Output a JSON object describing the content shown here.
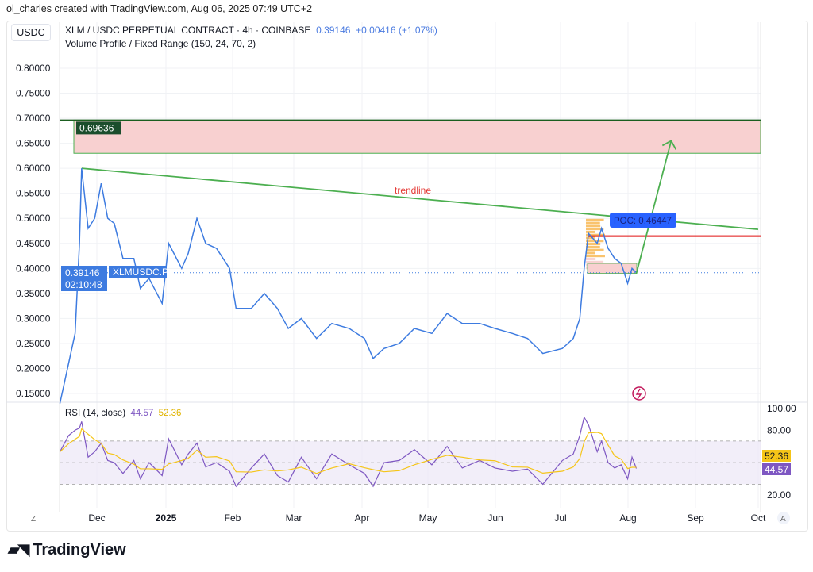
{
  "header": {
    "credit": "ol_charles created with TradingView.com, Aug 06, 2025 07:49 UTC+2",
    "currency": "USDC",
    "symbol": "XLM / USDC PERPETUAL CONTRACT · 4h · COINBASE",
    "price": "0.39146",
    "change": "+0.00416 (+1.07%)",
    "indicator": "Volume Profile / Fixed Range (150, 24, 70, 2)"
  },
  "labels": {
    "trendline": "trendline",
    "poc": "POC: 0.46447",
    "zone_top": "0.69636",
    "last_price": "0.39146",
    "countdown": "02:10:48",
    "ticker_tag": "XLMUSDC.P",
    "rsi_title": "RSI (14, close)",
    "rsi_value": "44.57",
    "rsi_ma": "52.36",
    "z": "Z",
    "a": "A",
    "brand": "TradingView"
  },
  "colors": {
    "price_line": "#3d7be0",
    "trendline": "#4caf50",
    "zone": "#f8d0d0",
    "poc": "#e01010",
    "rsi": "#7e57c2",
    "rsi_ma": "#f5c518"
  },
  "chart_data": {
    "type": "line",
    "price_axis": {
      "ticks": [
        "0.80000",
        "0.75000",
        "0.70000",
        "0.65000",
        "0.60000",
        "0.55000",
        "0.50000",
        "0.45000",
        "0.40000",
        "0.35000",
        "0.30000",
        "0.25000",
        "0.20000",
        "0.15000"
      ],
      "ylim": [
        0.13,
        0.85
      ]
    },
    "time_axis": {
      "ticks": [
        "Dec",
        "2025",
        "Feb",
        "Mar",
        "Apr",
        "May",
        "Jun",
        "Jul",
        "Aug",
        "Sep",
        "Oct"
      ]
    },
    "series": [
      {
        "x": [
          "2024-11-14",
          "2024-11-18",
          "2024-11-21",
          "2024-11-23",
          "2024-11-24",
          "2024-11-27",
          "2024-11-30",
          "2024-12-03",
          "2024-12-06",
          "2024-12-09",
          "2024-12-13",
          "2024-12-18",
          "2024-12-21",
          "2024-12-25",
          "2024-12-31",
          "2025-01-03",
          "2025-01-09",
          "2025-01-12",
          "2025-01-16",
          "2025-01-20",
          "2025-01-25",
          "2025-01-31",
          "2025-02-03",
          "2025-02-10",
          "2025-02-16",
          "2025-02-22",
          "2025-02-27",
          "2025-03-05",
          "2025-03-12",
          "2025-03-19",
          "2025-03-27",
          "2025-04-03",
          "2025-04-07",
          "2025-04-12",
          "2025-04-19",
          "2025-04-26",
          "2025-05-04",
          "2025-05-11",
          "2025-05-18",
          "2025-05-26",
          "2025-06-02",
          "2025-06-10",
          "2025-06-17",
          "2025-06-24",
          "2025-07-03",
          "2025-07-08",
          "2025-07-11",
          "2025-07-13",
          "2025-07-15",
          "2025-07-19",
          "2025-07-21",
          "2025-07-24",
          "2025-07-27",
          "2025-07-30",
          "2025-08-02",
          "2025-08-04",
          "2025-08-06"
        ],
        "y": [
          0.13,
          0.21,
          0.27,
          0.45,
          0.6,
          0.48,
          0.5,
          0.57,
          0.5,
          0.49,
          0.42,
          0.42,
          0.36,
          0.38,
          0.33,
          0.45,
          0.4,
          0.43,
          0.5,
          0.45,
          0.44,
          0.4,
          0.32,
          0.32,
          0.35,
          0.32,
          0.28,
          0.3,
          0.26,
          0.29,
          0.28,
          0.26,
          0.22,
          0.24,
          0.25,
          0.28,
          0.27,
          0.31,
          0.29,
          0.29,
          0.28,
          0.27,
          0.26,
          0.23,
          0.24,
          0.26,
          0.3,
          0.4,
          0.47,
          0.45,
          0.48,
          0.44,
          0.42,
          0.41,
          0.37,
          0.4,
          0.39146
        ]
      }
    ],
    "rsi": {
      "ticks": [
        "100.00",
        "80.00",
        "20.00"
      ],
      "bands": [
        30,
        70
      ],
      "values": [
        60,
        75,
        80,
        82,
        88,
        55,
        60,
        68,
        52,
        50,
        40,
        52,
        35,
        50,
        38,
        72,
        48,
        58,
        68,
        46,
        50,
        42,
        28,
        45,
        58,
        38,
        32,
        55,
        35,
        58,
        48,
        40,
        28,
        50,
        52,
        62,
        48,
        65,
        45,
        52,
        45,
        42,
        44,
        30,
        52,
        58,
        75,
        92,
        85,
        60,
        70,
        50,
        45,
        48,
        35,
        55,
        44.57
      ]
    },
    "overlays": {
      "resistance_zone": [
        0.63,
        0.69636
      ],
      "trendline": [
        [
          "2024-11-24",
          0.6
        ],
        [
          "2025-10-01",
          0.478
        ]
      ],
      "poc": 0.46447,
      "arrow": [
        [
          "2025-08-06",
          0.39
        ],
        [
          "2025-08-22",
          0.655
        ]
      ]
    }
  }
}
